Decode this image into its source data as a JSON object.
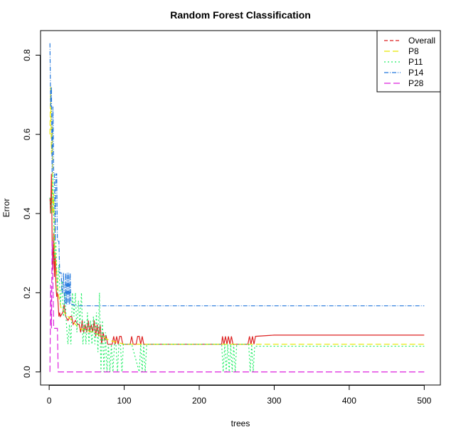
{
  "chart_data": {
    "type": "line",
    "title": "Random Forest Classification",
    "xlabel": "trees",
    "ylabel": "Error",
    "xlim": [
      -11.5,
      521.5
    ],
    "ylim": [
      -0.033,
      0.862
    ],
    "xticks": [
      0,
      100,
      200,
      300,
      400,
      500
    ],
    "yticks": [
      0.0,
      0.2,
      0.4,
      0.6,
      0.8
    ],
    "legend_position": "top-right",
    "series": [
      {
        "name": "Overall",
        "color": "#dd2222",
        "dash": "solid",
        "x": [
          1,
          2,
          3,
          4,
          5,
          6,
          7,
          8,
          9,
          10,
          11,
          12,
          13,
          14,
          15,
          18,
          20,
          22,
          25,
          28,
          30,
          32,
          35,
          38,
          40,
          42,
          44,
          46,
          48,
          50,
          52,
          54,
          56,
          58,
          60,
          62,
          64,
          66,
          68,
          70,
          72,
          74,
          76,
          78,
          80,
          82,
          84,
          86,
          88,
          90,
          92,
          94,
          96,
          98,
          100,
          104,
          108,
          110,
          112,
          114,
          116,
          118,
          120,
          122,
          124,
          126,
          128,
          130,
          140,
          160,
          180,
          200,
          220,
          230,
          231,
          233,
          235,
          237,
          239,
          241,
          243,
          245,
          247,
          250,
          260,
          265,
          267,
          269,
          271,
          273,
          275,
          300,
          350,
          400,
          450,
          500
        ],
        "values": [
          0.44,
          0.4,
          0.5,
          0.33,
          0.26,
          0.35,
          0.24,
          0.3,
          0.22,
          0.19,
          0.2,
          0.17,
          0.14,
          0.15,
          0.14,
          0.15,
          0.17,
          0.14,
          0.13,
          0.14,
          0.14,
          0.12,
          0.13,
          0.12,
          0.12,
          0.1,
          0.13,
          0.1,
          0.12,
          0.1,
          0.13,
          0.1,
          0.12,
          0.1,
          0.13,
          0.09,
          0.12,
          0.09,
          0.12,
          0.07,
          0.1,
          0.08,
          0.09,
          0.07,
          0.07,
          0.07,
          0.07,
          0.09,
          0.07,
          0.09,
          0.07,
          0.09,
          0.09,
          0.07,
          0.07,
          0.07,
          0.07,
          0.09,
          0.07,
          0.07,
          0.07,
          0.09,
          0.09,
          0.07,
          0.09,
          0.07,
          0.07,
          0.07,
          0.07,
          0.07,
          0.07,
          0.07,
          0.07,
          0.07,
          0.09,
          0.07,
          0.09,
          0.07,
          0.09,
          0.07,
          0.09,
          0.07,
          0.07,
          0.07,
          0.07,
          0.07,
          0.09,
          0.07,
          0.09,
          0.07,
          0.09,
          0.093,
          0.093,
          0.093,
          0.093,
          0.093
        ]
      },
      {
        "name": "P8",
        "color": "#e8e800",
        "dash": "8,4",
        "x": [
          1,
          2,
          3,
          4,
          5,
          6,
          7,
          8,
          9,
          10,
          11,
          12,
          13,
          14,
          15,
          16,
          18,
          20,
          25,
          30,
          40,
          60,
          80,
          100,
          200,
          300,
          400,
          500
        ],
        "values": [
          0.6,
          0.72,
          0.55,
          0.62,
          0.4,
          0.45,
          0.33,
          0.3,
          0.28,
          0.25,
          0.22,
          0.2,
          0.19,
          0.18,
          0.17,
          0.16,
          0.16,
          0.15,
          0.14,
          0.13,
          0.11,
          0.1,
          0.08,
          0.07,
          0.07,
          0.07,
          0.07,
          0.07
        ]
      },
      {
        "name": "P11",
        "color": "#22ee66",
        "dash": "2,3",
        "x": [
          1,
          3,
          5,
          7,
          9,
          11,
          13,
          15,
          17,
          19,
          21,
          23,
          25,
          27,
          29,
          31,
          33,
          35,
          37,
          39,
          41,
          43,
          45,
          47,
          49,
          51,
          53,
          55,
          57,
          59,
          61,
          63,
          65,
          67,
          69,
          71,
          73,
          75,
          77,
          79,
          81,
          83,
          85,
          87,
          89,
          91,
          93,
          95,
          97,
          99,
          101,
          110,
          120,
          122,
          124,
          126,
          128,
          130,
          150,
          200,
          230,
          232,
          234,
          236,
          238,
          240,
          242,
          244,
          246,
          248,
          250,
          260,
          266,
          268,
          270,
          272,
          274,
          300,
          400,
          500
        ],
        "values": [
          0.44,
          0.4,
          0.5,
          0.28,
          0.33,
          0.2,
          0.27,
          0.17,
          0.23,
          0.14,
          0.2,
          0.12,
          0.07,
          0.12,
          0.07,
          0.2,
          0.14,
          0.2,
          0.1,
          0.18,
          0.12,
          0.2,
          0.07,
          0.13,
          0.07,
          0.15,
          0.07,
          0.13,
          0.07,
          0.14,
          0.07,
          0.15,
          0.05,
          0.2,
          0.0,
          0.13,
          0.0,
          0.1,
          0.0,
          0.07,
          0.0,
          0.07,
          0.0,
          0.07,
          0.07,
          0.0,
          0.07,
          0.07,
          0.0,
          0.07,
          0.07,
          0.07,
          0.0,
          0.07,
          0.0,
          0.07,
          0.0,
          0.07,
          0.07,
          0.07,
          0.07,
          0.0,
          0.07,
          0.0,
          0.07,
          0.0,
          0.07,
          0.0,
          0.07,
          0.0,
          0.07,
          0.07,
          0.07,
          0.0,
          0.07,
          0.0,
          0.065,
          0.065,
          0.065,
          0.065
        ]
      },
      {
        "name": "P14",
        "color": "#2277dd",
        "dash": "6,2,1,2",
        "x": [
          1,
          2,
          3,
          4,
          5,
          6,
          7,
          8,
          9,
          10,
          11,
          12,
          13,
          14,
          15,
          16,
          17,
          18,
          19,
          20,
          21,
          22,
          23,
          24,
          25,
          26,
          27,
          28,
          29,
          30,
          32,
          35,
          40,
          45,
          50,
          60,
          80,
          100,
          200,
          300,
          400,
          500
        ],
        "values": [
          0.83,
          0.67,
          0.72,
          0.5,
          0.67,
          0.5,
          0.5,
          0.33,
          0.5,
          0.5,
          0.33,
          0.33,
          0.33,
          0.25,
          0.25,
          0.25,
          0.2,
          0.2,
          0.25,
          0.2,
          0.17,
          0.25,
          0.17,
          0.25,
          0.17,
          0.25,
          0.17,
          0.25,
          0.17,
          0.17,
          0.17,
          0.167,
          0.167,
          0.167,
          0.167,
          0.167,
          0.167,
          0.167,
          0.167,
          0.167,
          0.167,
          0.167
        ]
      },
      {
        "name": "P28",
        "color": "#dd22dd",
        "dash": "9,4",
        "x": [
          1,
          2,
          3,
          4,
          5,
          6,
          7,
          8,
          9,
          10,
          11,
          12,
          13,
          20,
          50,
          100,
          200,
          300,
          400,
          500
        ],
        "values": [
          0.0,
          0.22,
          0.11,
          0.33,
          0.22,
          0.11,
          0.11,
          0.11,
          0.11,
          0.11,
          0.11,
          0.0,
          0.0,
          0.0,
          0.0,
          0.0,
          0.0,
          0.0,
          0.0,
          0.0
        ]
      }
    ]
  }
}
